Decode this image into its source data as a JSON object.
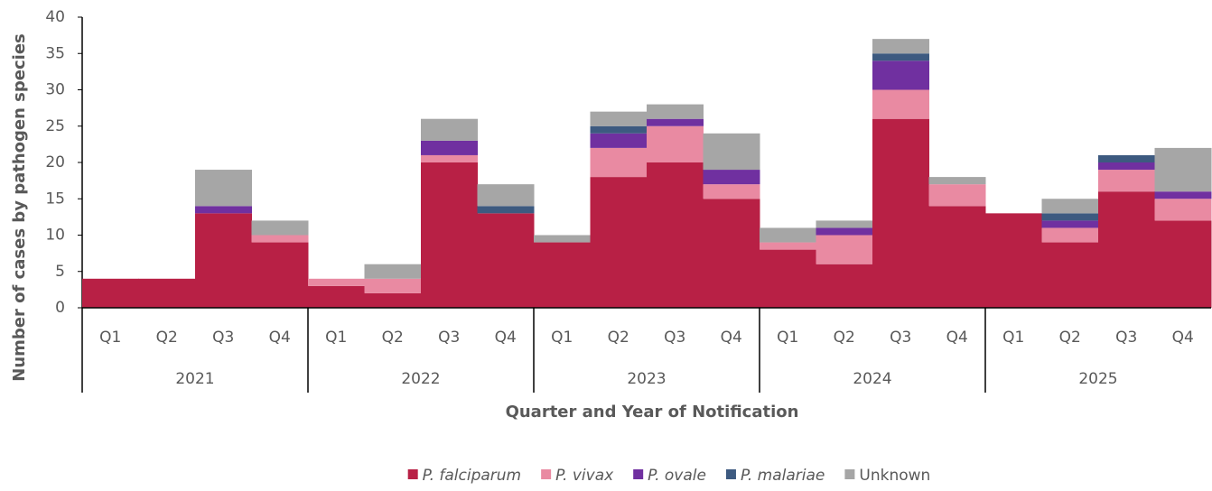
{
  "chart_data": {
    "type": "stacked_bar",
    "x_label": "Quarter and Year of Notification",
    "y_label": "Number of cases by pathogen species",
    "categories": [
      "Q1",
      "Q2",
      "Q3",
      "Q4",
      "Q1",
      "Q2",
      "Q3",
      "Q4",
      "Q1",
      "Q2",
      "Q3",
      "Q4",
      "Q1",
      "Q2",
      "Q3",
      "Q4",
      "Q1",
      "Q2",
      "Q3",
      "Q4"
    ],
    "groups": [
      "2021",
      "2022",
      "2023",
      "2024",
      "2025"
    ],
    "series": [
      {
        "name": "P. falciparum",
        "color": "#b82045",
        "values": [
          4,
          4,
          13,
          9,
          3,
          2,
          20,
          13,
          9,
          18,
          20,
          15,
          8,
          6,
          26,
          14,
          13,
          9,
          16,
          12
        ]
      },
      {
        "name": "P. vivax",
        "color": "#e98aa2",
        "values": [
          0,
          0,
          0,
          1,
          1,
          2,
          1,
          0,
          0,
          4,
          5,
          2,
          1,
          4,
          4,
          3,
          0,
          2,
          3,
          3
        ]
      },
      {
        "name": "P. ovale",
        "color": "#7030a0",
        "values": [
          0,
          0,
          1,
          0,
          0,
          0,
          2,
          0,
          0,
          2,
          1,
          2,
          0,
          1,
          4,
          0,
          0,
          1,
          1,
          1
        ]
      },
      {
        "name": "P. malariae",
        "color": "#3d5a80",
        "values": [
          0,
          0,
          0,
          0,
          0,
          0,
          0,
          1,
          0,
          1,
          0,
          0,
          0,
          0,
          1,
          0,
          0,
          1,
          1,
          0
        ]
      },
      {
        "name": "Unknown",
        "color": "#a6a6a6",
        "values": [
          0,
          0,
          5,
          2,
          0,
          2,
          3,
          3,
          1,
          2,
          2,
          5,
          2,
          1,
          2,
          1,
          0,
          2,
          0,
          6
        ]
      }
    ],
    "ylim": [
      0,
      40
    ],
    "yticks": [
      0,
      5,
      10,
      15,
      20,
      25,
      30,
      35,
      40
    ],
    "legend": "bottom"
  }
}
